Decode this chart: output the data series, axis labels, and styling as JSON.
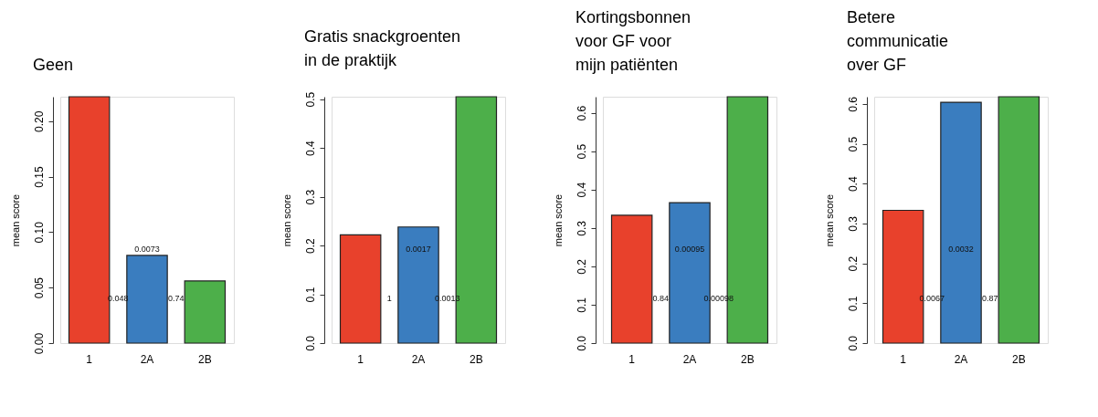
{
  "chart_data": [
    {
      "type": "bar",
      "title": "Geen",
      "ylabel": "mean score",
      "categories": [
        "1",
        "2A",
        "2B"
      ],
      "values": [
        0.222,
        0.079,
        0.056
      ],
      "colors": [
        "#e8412c",
        "#3a7dbf",
        "#4daf4a"
      ],
      "ylim": [
        0,
        0.222
      ],
      "yticks": [
        {
          "value": 0,
          "label": "0.00"
        },
        {
          "value": 0.05,
          "label": "0.05"
        },
        {
          "value": 0.1,
          "label": "0.10"
        },
        {
          "value": 0.15,
          "label": "0.15"
        },
        {
          "value": 0.2,
          "label": "0.20"
        }
      ],
      "grid": false,
      "annotations": [
        "0.0073",
        "0.048",
        "0.74"
      ]
    },
    {
      "type": "bar",
      "title": "Gratis snackgroenten\nin de praktijk",
      "ylabel": "mean score",
      "categories": [
        "1",
        "2A",
        "2B"
      ],
      "values": [
        0.222,
        0.238,
        0.505
      ],
      "colors": [
        "#e8412c",
        "#3a7dbf",
        "#4daf4a"
      ],
      "ylim": [
        0,
        0.505
      ],
      "yticks": [
        {
          "value": 0,
          "label": "0.0"
        },
        0.1,
        0.2,
        0.3,
        0.4,
        0.5
      ],
      "grid": false,
      "annotations": [
        "0.0017",
        "1",
        "0.0013"
      ]
    },
    {
      "type": "bar",
      "title": "Kortingsbonnen\nvoor GF voor\nmijn patiënten",
      "ylabel": "mean score",
      "categories": [
        "1",
        "2A",
        "2B"
      ],
      "values": [
        0.333,
        0.366,
        0.642
      ],
      "colors": [
        "#e8412c",
        "#3a7dbf",
        "#4daf4a"
      ],
      "ylim": [
        0,
        0.642
      ],
      "yticks": [
        {
          "value": 0,
          "label": "0.0"
        },
        0.1,
        0.2,
        0.3,
        0.4,
        0.5,
        0.6
      ],
      "grid": false,
      "annotations": [
        "0.00095",
        "0.84",
        "0.00098"
      ]
    },
    {
      "type": "bar",
      "title": "Betere\ncommunicatie\nover GF",
      "ylabel": "mean score",
      "categories": [
        "1",
        "2A",
        "2B"
      ],
      "values": [
        0.333,
        0.604,
        0.618
      ],
      "colors": [
        "#e8412c",
        "#3a7dbf",
        "#4daf4a"
      ],
      "ylim": [
        0,
        0.618
      ],
      "yticks": [
        {
          "value": 0,
          "label": "0.0"
        },
        0.1,
        0.2,
        0.3,
        0.4,
        0.5,
        0.6
      ],
      "grid": false,
      "annotations": [
        "0.0032",
        "0.0067",
        "0.87"
      ]
    }
  ]
}
